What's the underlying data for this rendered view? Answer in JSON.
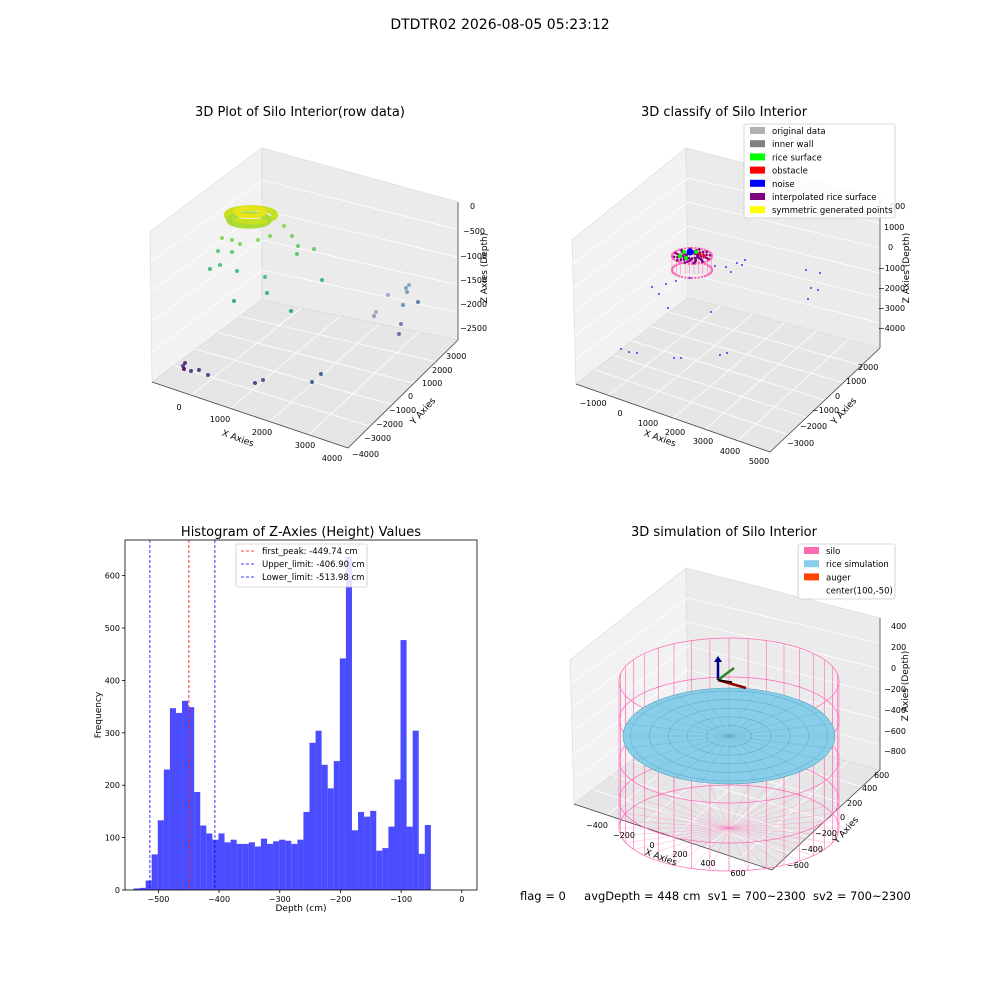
{
  "figure": {
    "suptitle": "DTDTR02 2026-08-05 05:23:12",
    "status": {
      "flag": "flag = 0",
      "avg_depth": "avgDepth = 448 cm",
      "sv1": "sv1 = 700~2300",
      "sv2": "sv2 = 700~2300"
    }
  },
  "chart_data": [
    {
      "type": "scatter",
      "subtype": "3d",
      "title": "3D Plot of Silo Interior(row data)",
      "xlabel": "X Axies",
      "ylabel": "Y Axies",
      "zlabel": "Z Axies (Depth)",
      "x_ticks": [
        "0",
        "1000",
        "2000",
        "3000",
        "4000"
      ],
      "y_ticks": [
        "3000",
        "2000",
        "1000",
        "0",
        "−1000",
        "−2000",
        "−3000",
        "−4000"
      ],
      "z_ticks": [
        "0",
        "−500",
        "−1000",
        "−1500",
        "−2000",
        "−2500"
      ],
      "colormap": "viridis",
      "grid": true
    },
    {
      "type": "scatter",
      "subtype": "3d",
      "title": "3D classify of Silo Interior",
      "xlabel": "X Axies",
      "ylabel": "Y Axies",
      "zlabel": "Z Axies (Depth)",
      "x_ticks": [
        "−1000",
        "0",
        "1000",
        "2000",
        "3000",
        "4000",
        "5000"
      ],
      "y_ticks": [
        "2000",
        "1000",
        "0",
        "−1000",
        "−2000",
        "−3000"
      ],
      "z_ticks": [
        "1000",
        "0",
        "−1000",
        "−2000",
        "−3000",
        "−4000"
      ],
      "z_ticks_partial_top": "000",
      "legend": [
        {
          "label": "original data",
          "color": "#b0b0b0"
        },
        {
          "label": "inner wall",
          "color": "#808080"
        },
        {
          "label": "rice surface",
          "color": "#00ff00"
        },
        {
          "label": "obstacle",
          "color": "#ff0000"
        },
        {
          "label": "noise",
          "color": "#0000ff"
        },
        {
          "label": "interpolated rice surface",
          "color": "#800080"
        },
        {
          "label": "symmetric generated points",
          "color": "#ffff00"
        }
      ],
      "legend_loc": "upper right",
      "grid": true
    },
    {
      "type": "bar",
      "subtype": "histogram",
      "title": "Histogram of Z-Axies (Height) Values",
      "xlabel": "Depth (cm)",
      "ylabel": "Frequency",
      "xlim": [
        -555,
        25
      ],
      "ylim": [
        0,
        668
      ],
      "x_ticks": [
        -500,
        -400,
        -300,
        -200,
        -100,
        0
      ],
      "x_tick_labels": [
        "−500",
        "−400",
        "−300",
        "−200",
        "−100",
        "0"
      ],
      "y_ticks": [
        0,
        100,
        200,
        300,
        400,
        500,
        600
      ],
      "y_tick_labels": [
        "0",
        "100",
        "200",
        "300",
        "400",
        "500",
        "600"
      ],
      "bar_color": "#0000ff",
      "bar_alpha": 0.7,
      "bins": [
        {
          "x0": -541.0,
          "x1": -531.0,
          "count": 3
        },
        {
          "x0": -531.0,
          "x1": -521.0,
          "count": 4
        },
        {
          "x0": -521.0,
          "x1": -511.0,
          "count": 18
        },
        {
          "x0": -511.0,
          "x1": -501.0,
          "count": 68
        },
        {
          "x0": -501.0,
          "x1": -491.0,
          "count": 133
        },
        {
          "x0": -491.0,
          "x1": -481.0,
          "count": 230
        },
        {
          "x0": -481.0,
          "x1": -471.0,
          "count": 347
        },
        {
          "x0": -471.0,
          "x1": -461.0,
          "count": 338
        },
        {
          "x0": -461.0,
          "x1": -451.0,
          "count": 361
        },
        {
          "x0": -451.0,
          "x1": -441.0,
          "count": 349
        },
        {
          "x0": -441.0,
          "x1": -431.0,
          "count": 187
        },
        {
          "x0": -431.0,
          "x1": -421.0,
          "count": 123
        },
        {
          "x0": -421.0,
          "x1": -411.0,
          "count": 108
        },
        {
          "x0": -411.0,
          "x1": -401.0,
          "count": 96
        },
        {
          "x0": -401.0,
          "x1": -391.0,
          "count": 108
        },
        {
          "x0": -391.0,
          "x1": -381.0,
          "count": 91
        },
        {
          "x0": -381.0,
          "x1": -371.0,
          "count": 96
        },
        {
          "x0": -371.0,
          "x1": -361.0,
          "count": 88
        },
        {
          "x0": -361.0,
          "x1": -351.0,
          "count": 88
        },
        {
          "x0": -351.0,
          "x1": -341.0,
          "count": 91
        },
        {
          "x0": -341.0,
          "x1": -331.0,
          "count": 83
        },
        {
          "x0": -331.0,
          "x1": -321.0,
          "count": 98
        },
        {
          "x0": -321.0,
          "x1": -311.0,
          "count": 88
        },
        {
          "x0": -311.0,
          "x1": -301.0,
          "count": 93
        },
        {
          "x0": -301.0,
          "x1": -291.0,
          "count": 96
        },
        {
          "x0": -291.0,
          "x1": -281.0,
          "count": 94
        },
        {
          "x0": -281.0,
          "x1": -271.0,
          "count": 88
        },
        {
          "x0": -271.0,
          "x1": -261.0,
          "count": 96
        },
        {
          "x0": -261.0,
          "x1": -251.0,
          "count": 149
        },
        {
          "x0": -251.0,
          "x1": -241.0,
          "count": 281
        },
        {
          "x0": -241.0,
          "x1": -231.0,
          "count": 304
        },
        {
          "x0": -231.0,
          "x1": -221.0,
          "count": 239
        },
        {
          "x0": -221.0,
          "x1": -211.0,
          "count": 194
        },
        {
          "x0": -211.0,
          "x1": -201.0,
          "count": 246
        },
        {
          "x0": -201.0,
          "x1": -191.0,
          "count": 442
        },
        {
          "x0": -191.0,
          "x1": -181.0,
          "count": 636
        },
        {
          "x0": -181.0,
          "x1": -171.0,
          "count": 114
        },
        {
          "x0": -171.0,
          "x1": -161.0,
          "count": 149
        },
        {
          "x0": -161.0,
          "x1": -151.0,
          "count": 140
        },
        {
          "x0": -151.0,
          "x1": -141.0,
          "count": 151
        },
        {
          "x0": -141.0,
          "x1": -131.0,
          "count": 75
        },
        {
          "x0": -131.0,
          "x1": -121.0,
          "count": 80
        },
        {
          "x0": -121.0,
          "x1": -111.0,
          "count": 121
        },
        {
          "x0": -111.0,
          "x1": -101.0,
          "count": 211
        },
        {
          "x0": -101.0,
          "x1": -91.0,
          "count": 477
        },
        {
          "x0": -91.0,
          "x1": -81.0,
          "count": 121
        },
        {
          "x0": -81.0,
          "x1": -71.0,
          "count": 304
        },
        {
          "x0": -71.0,
          "x1": -61.0,
          "count": 69
        },
        {
          "x0": -61.0,
          "x1": -51.0,
          "count": 124
        }
      ],
      "vlines": [
        {
          "label": "first_peak: -449.74 cm",
          "x": -449.74,
          "color": "#ff0000"
        },
        {
          "label": "Upper_limit: -406.90 cm",
          "x": -406.9,
          "color": "#0000ff"
        },
        {
          "label": "Lower_limit: -513.98 cm",
          "x": -513.98,
          "color": "#0000ff"
        }
      ],
      "legend_loc": "upper center"
    },
    {
      "type": "surface",
      "subtype": "3d",
      "title": "3D simulation of Silo Interior",
      "xlabel": "X Axies",
      "ylabel": "Y Axies",
      "zlabel": "Z Axies (Depth)",
      "x_ticks": [
        "−400",
        "−200",
        "0",
        "200",
        "400",
        "600"
      ],
      "y_ticks": [
        "600",
        "400",
        "200",
        "0",
        "−200",
        "−400",
        "−600"
      ],
      "z_ticks": [
        "400",
        "200",
        "0",
        "−200",
        "−400",
        "−600",
        "−800"
      ],
      "legend": [
        {
          "label": "silo",
          "color": "#ff69b4"
        },
        {
          "label": "rice simulation",
          "color": "#87ceeb"
        },
        {
          "label": "auger",
          "color": "#ff4500"
        },
        {
          "label": "center(100,-50)",
          "color": ""
        }
      ],
      "legend_loc": "upper right",
      "grid": true
    }
  ]
}
